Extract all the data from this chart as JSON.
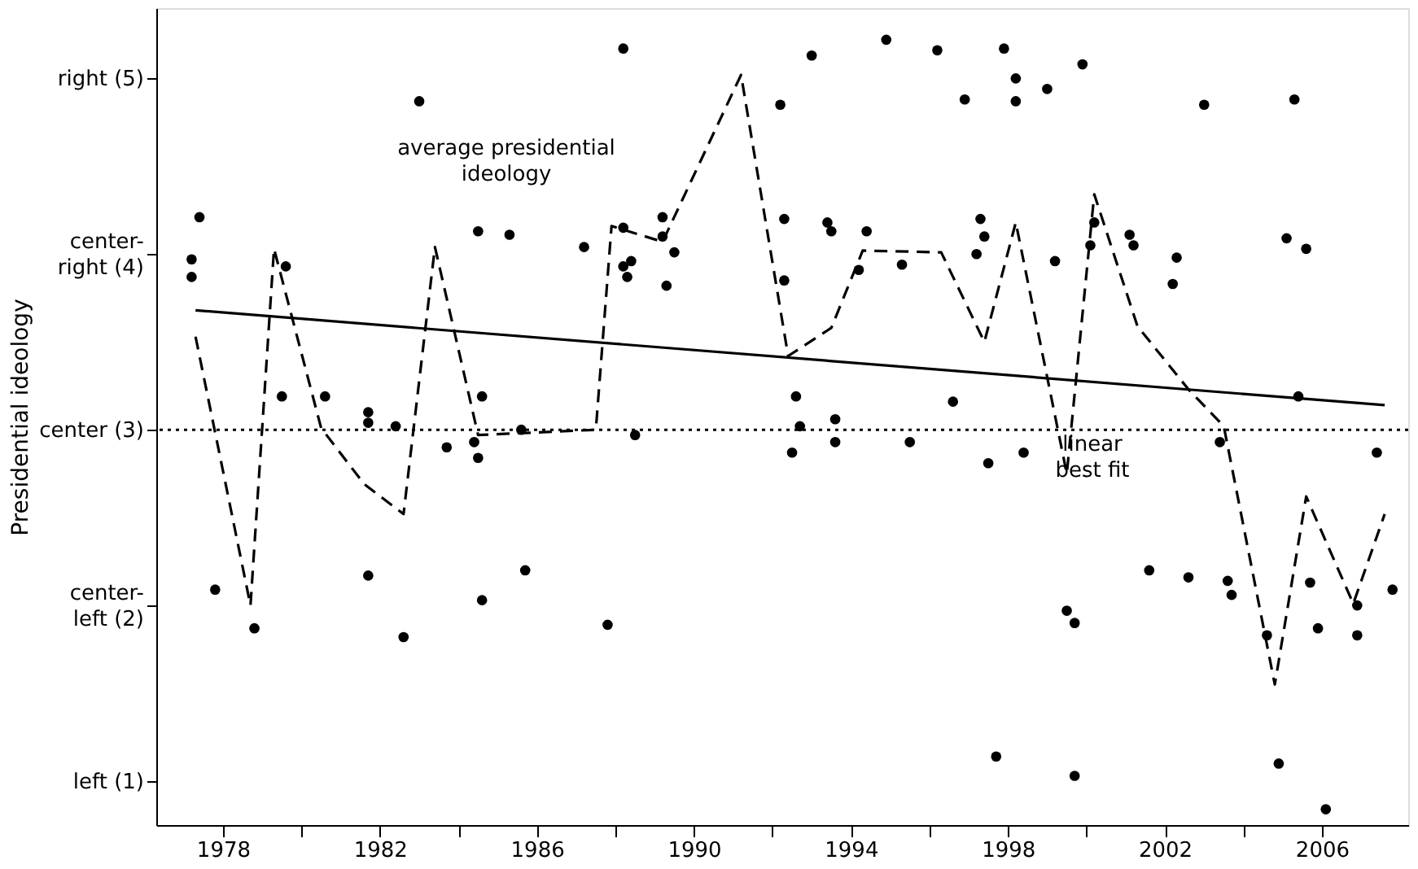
{
  "chart_data": {
    "type": "scatter",
    "ylabel": "Presidential ideology",
    "xlim": [
      1976.3,
      2008.2
    ],
    "ylim": [
      0.75,
      5.4
    ],
    "xticks": [
      1978,
      {
        "value": 1980,
        "label": null
      },
      1982,
      {
        "value": 1984,
        "label": null
      },
      1986,
      {
        "value": 1988,
        "label": null
      },
      1990,
      {
        "value": 1992,
        "label": null
      },
      1994,
      {
        "value": 1996,
        "label": null
      },
      1998,
      {
        "value": 2000,
        "label": null
      },
      2002,
      {
        "value": 2004,
        "label": null
      },
      2006
    ],
    "yticks": [
      {
        "value": 1,
        "label": "left (1)"
      },
      {
        "value": 2,
        "label": "center-\nleft (2)"
      },
      {
        "value": 3,
        "label": "center (3)"
      },
      {
        "value": 4,
        "label": "center-\nright (4)"
      },
      {
        "value": 5,
        "label": "right (5)"
      }
    ],
    "grid": false,
    "series": [
      {
        "color": "#000000",
        "marker": "circle",
        "x": [
          1977.2,
          1977.2,
          1977.4,
          1977.8,
          1978.8,
          1979.5,
          1979.6,
          1980.6,
          1981.7,
          1981.7,
          1981.7,
          1982.4,
          1982.6,
          1983.0,
          1983.7,
          1984.4,
          1984.5,
          1984.6,
          1984.5,
          1984.6,
          1985.3,
          1985.6,
          1985.7,
          1987.2,
          1987.8,
          1988.2,
          1988.2,
          1988.2,
          1988.4,
          1988.3,
          1988.5,
          1989.2,
          1989.2,
          1989.3,
          1989.5,
          1992.2,
          1992.3,
          1992.3,
          1992.5,
          1992.6,
          1992.7,
          1993.0,
          1993.4,
          1993.5,
          1993.6,
          1993.6,
          1994.2,
          1994.4,
          1994.9,
          1995.3,
          1995.5,
          1996.2,
          1996.6,
          1996.9,
          1997.3,
          1997.4,
          1997.2,
          1997.5,
          1997.7,
          1997.9,
          1998.2,
          1998.2,
          1998.4,
          1999.0,
          1999.2,
          1999.5,
          1999.7,
          1999.7,
          1999.9,
          2000.2,
          2000.1,
          2001.1,
          2001.2,
          2001.6,
          2002.3,
          2002.2,
          2002.6,
          2003.0,
          2003.4,
          2003.6,
          2003.7,
          2004.6,
          2004.9,
          2005.3,
          2005.1,
          2005.6,
          2005.4,
          2005.7,
          2005.9,
          2006.1,
          2006.9,
          2006.9,
          2007.4,
          2007.8
        ],
        "values": [
          3.97,
          3.87,
          4.21,
          2.09,
          1.87,
          3.19,
          3.93,
          3.19,
          3.1,
          3.04,
          2.17,
          3.02,
          1.82,
          4.87,
          2.9,
          2.93,
          2.84,
          3.19,
          4.13,
          2.03,
          4.11,
          3.0,
          2.2,
          4.04,
          1.89,
          5.17,
          4.15,
          3.93,
          3.96,
          3.87,
          2.97,
          4.21,
          4.1,
          3.82,
          4.01,
          4.85,
          4.2,
          3.85,
          2.87,
          3.19,
          3.02,
          5.13,
          4.18,
          4.13,
          3.06,
          2.93,
          3.91,
          4.13,
          5.22,
          3.94,
          2.93,
          5.16,
          3.16,
          4.88,
          4.2,
          4.1,
          4.0,
          2.81,
          1.14,
          5.17,
          5.0,
          4.87,
          2.87,
          4.94,
          3.96,
          1.97,
          1.9,
          1.03,
          5.08,
          4.18,
          4.05,
          4.11,
          4.05,
          2.2,
          3.98,
          3.83,
          2.16,
          4.85,
          2.93,
          2.14,
          2.06,
          1.83,
          1.1,
          4.88,
          4.09,
          4.03,
          3.19,
          2.13,
          1.87,
          0.84,
          2.0,
          1.83,
          2.87,
          2.09
        ]
      },
      {
        "type": "line",
        "color": "#000000",
        "line_style": "dashed",
        "x": [
          1977.3,
          1978.7,
          1979.3,
          1980.5,
          1981.6,
          1982.6,
          1983.4,
          1984.5,
          1987.5,
          1987.9,
          1989.2,
          1991.2,
          1992.4,
          1993.5,
          1994.3,
          1996.3,
          1997.4,
          1998.2,
          1999.5,
          2000.2,
          2001.3,
          2002.6,
          2003.5,
          2004.8,
          2005.6,
          2006.8,
          2007.6
        ],
        "values": [
          3.53,
          2.0,
          4.03,
          3.01,
          2.69,
          2.52,
          4.04,
          2.97,
          3.0,
          4.16,
          4.07,
          5.02,
          3.42,
          3.58,
          4.02,
          4.01,
          3.5,
          4.18,
          2.75,
          4.34,
          3.59,
          3.23,
          3.02,
          1.55,
          2.62,
          2.01,
          2.52
        ]
      },
      {
        "type": "line",
        "color": "#000000",
        "line_style": "solid",
        "x": [
          1977.3,
          2007.6
        ],
        "values": [
          3.68,
          3.14
        ]
      }
    ],
    "ref_lines": [
      {
        "axis": "y",
        "value": 3,
        "color": "#000000",
        "line_style": "dotted"
      }
    ],
    "annotations": [
      "average presidential\nideology",
      "linear\nbest fit"
    ]
  }
}
